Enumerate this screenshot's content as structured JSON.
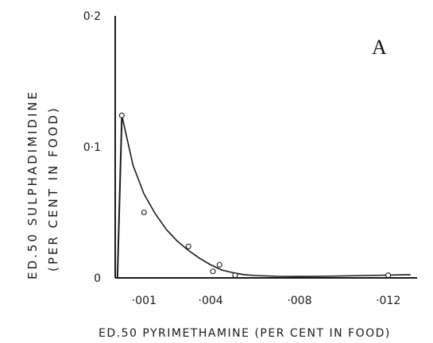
{
  "chart_data": {
    "type": "scatter",
    "panel_label": "A",
    "xlabel": "ED.50 PYRIMETHAMINE (PER CENT IN FOOD)",
    "ylabel_line1": "ED.50   SULPHADIMIDINE",
    "ylabel_line2": "(PER   CENT   IN   FOOD)",
    "x_tick_labels": [
      "·001",
      "·004",
      "·008",
      "·012"
    ],
    "x_tick_values": [
      0.001,
      0.004,
      0.008,
      0.012
    ],
    "y_tick_labels": [
      "0",
      "0·1",
      "0·2"
    ],
    "y_tick_values": [
      0,
      0.1,
      0.2
    ],
    "xlim": [
      -0.0003,
      0.0133
    ],
    "ylim": [
      0,
      0.2
    ],
    "grid": false,
    "points": [
      {
        "x": 0.0,
        "y": 0.124
      },
      {
        "x": 0.001,
        "y": 0.05
      },
      {
        "x": 0.003,
        "y": 0.024
      },
      {
        "x": 0.0041,
        "y": 0.005
      },
      {
        "x": 0.0044,
        "y": 0.01
      },
      {
        "x": 0.0051,
        "y": 0.002
      },
      {
        "x": 0.012,
        "y": 0.002
      }
    ],
    "fitted_curve": [
      {
        "x": 0.0,
        "y": 0.124
      },
      {
        "x": 0.0005,
        "y": 0.086
      },
      {
        "x": 0.001,
        "y": 0.064
      },
      {
        "x": 0.0015,
        "y": 0.049
      },
      {
        "x": 0.002,
        "y": 0.037
      },
      {
        "x": 0.0025,
        "y": 0.028
      },
      {
        "x": 0.003,
        "y": 0.021
      },
      {
        "x": 0.0035,
        "y": 0.015
      },
      {
        "x": 0.004,
        "y": 0.01
      },
      {
        "x": 0.0045,
        "y": 0.006
      },
      {
        "x": 0.005,
        "y": 0.004
      },
      {
        "x": 0.0055,
        "y": 0.0025
      },
      {
        "x": 0.006,
        "y": 0.0018
      },
      {
        "x": 0.007,
        "y": 0.0012
      },
      {
        "x": 0.008,
        "y": 0.0011
      },
      {
        "x": 0.009,
        "y": 0.0012
      },
      {
        "x": 0.01,
        "y": 0.0015
      },
      {
        "x": 0.011,
        "y": 0.0018
      },
      {
        "x": 0.012,
        "y": 0.0021
      },
      {
        "x": 0.013,
        "y": 0.0025
      }
    ],
    "additivity_line": [
      {
        "x": 0.0,
        "y": 0.124
      },
      {
        "x": -0.0002,
        "y": 0.0
      }
    ]
  }
}
